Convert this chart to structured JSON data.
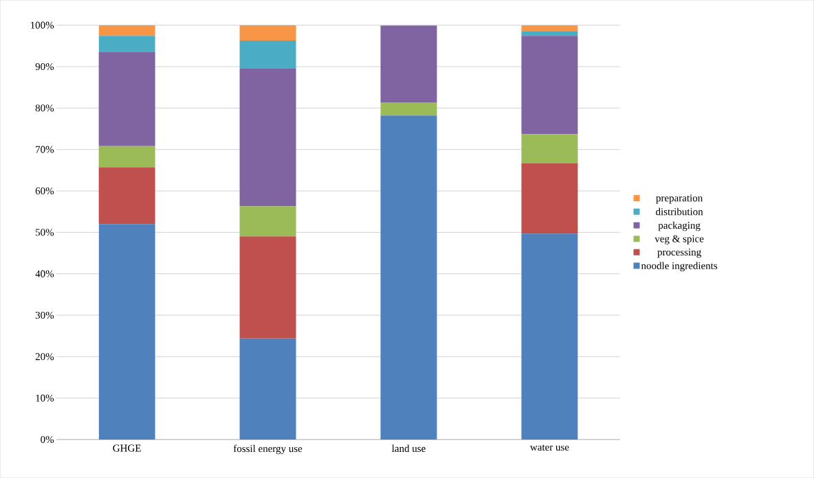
{
  "chart_data": {
    "type": "bar",
    "stacked": true,
    "categories": [
      "GHGE",
      "fossil energy use",
      "land use",
      "water use"
    ],
    "series": [
      {
        "name": "noodle ingredients",
        "color": "#4f81bd",
        "values": [
          52.0,
          24.4,
          78.2,
          49.7
        ]
      },
      {
        "name": "processing",
        "color": "#c0504d",
        "values": [
          13.7,
          24.6,
          0,
          17.0
        ]
      },
      {
        "name": "veg & spice",
        "color": "#9bbb59",
        "values": [
          5.1,
          7.3,
          3.2,
          7.0
        ]
      },
      {
        "name": "packaging",
        "color": "#8064a2",
        "values": [
          22.7,
          33.2,
          18.4,
          23.7
        ]
      },
      {
        "name": "distribution",
        "color": "#4bacc6",
        "values": [
          3.9,
          6.8,
          0.2,
          1.2
        ]
      },
      {
        "name": "preparation",
        "color": "#f79646",
        "values": [
          2.6,
          3.7,
          0,
          1.4
        ]
      }
    ],
    "ylim": [
      0,
      100
    ],
    "yticks": [
      {
        "value": 0,
        "label": "0%"
      },
      {
        "value": 10,
        "label": "10%"
      },
      {
        "value": 20,
        "label": "20%"
      },
      {
        "value": 30,
        "label": "30%"
      },
      {
        "value": 40,
        "label": "40%"
      },
      {
        "value": 50,
        "label": "50%"
      },
      {
        "value": 60,
        "label": "60%"
      },
      {
        "value": 70,
        "label": "70%"
      },
      {
        "value": 80,
        "label": "80%"
      },
      {
        "value": 90,
        "label": "90%"
      },
      {
        "value": 100,
        "label": "100%"
      }
    ],
    "grid": "y",
    "legend": "right"
  }
}
